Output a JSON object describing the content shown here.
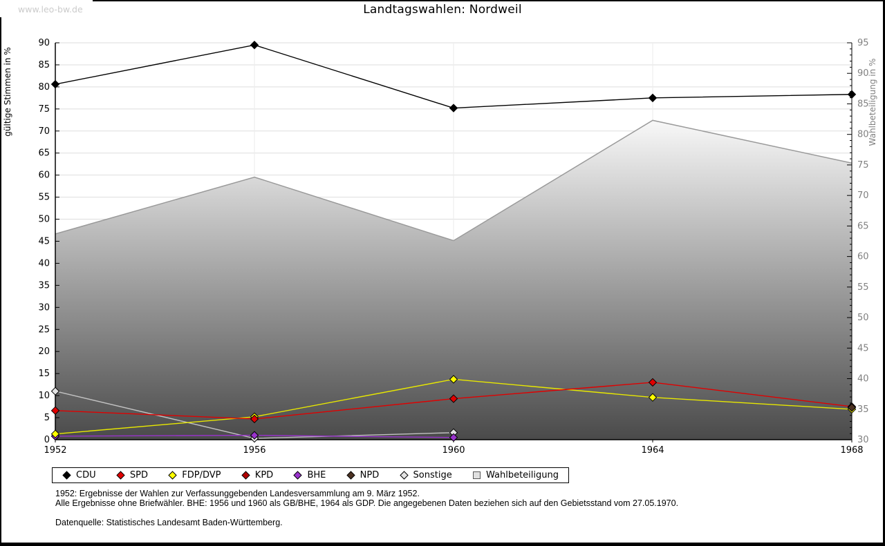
{
  "watermark": "www.leo-bw.de",
  "title": "Landtagswahlen: Nordweil",
  "chart_data": {
    "type": "line",
    "title": "Landtagswahlen: Nordweil",
    "categories": [
      "1952",
      "1956",
      "1960",
      "1964",
      "1968"
    ],
    "y_left": {
      "label": "gültige Stimmen in %",
      "min": 0,
      "max": 90,
      "tick_step": 5
    },
    "y_right": {
      "label": "Wahlbeteiligung in %",
      "min": 30,
      "max": 95,
      "tick_step": 5,
      "minor_tick_step": 1
    },
    "grid": true,
    "legend_position": "bottom",
    "legend": [
      "CDU",
      "SPD",
      "FDP/DVP",
      "KPD",
      "BHE",
      "NPD",
      "Sonstige",
      "Wahlbeteiligung"
    ],
    "series": [
      {
        "name": "Wahlbeteiligung",
        "kind": "area",
        "axis": "right",
        "color": "#9a9a9a",
        "marker_fill": "#e0e0e0",
        "values": [
          63.7,
          73.0,
          62.6,
          82.3,
          75.3
        ]
      },
      {
        "name": "Sonstige",
        "kind": "line",
        "axis": "left",
        "color": "#c2c2c2",
        "marker_fill": "#e3e3e3",
        "values": [
          11.0,
          0.3,
          1.6,
          null,
          null
        ]
      },
      {
        "name": "KPD",
        "kind": "line",
        "axis": "left",
        "color": "#b00000",
        "marker_fill": "#b00000",
        "values": [
          0.8,
          null,
          null,
          null,
          null
        ]
      },
      {
        "name": "BHE",
        "kind": "line",
        "axis": "left",
        "color": "#9933cc",
        "marker_fill": "#9933cc",
        "values": [
          0.8,
          1.0,
          0.5,
          null,
          null
        ]
      },
      {
        "name": "FDP/DVP",
        "kind": "line",
        "axis": "left",
        "color": "#e8e800",
        "marker_fill": "#ffff00",
        "values": [
          1.3,
          5.2,
          13.7,
          9.6,
          6.9
        ]
      },
      {
        "name": "SPD",
        "kind": "line",
        "axis": "left",
        "color": "#e00000",
        "marker_fill": "#e00000",
        "values": [
          6.6,
          4.7,
          9.3,
          13.0,
          7.5
        ]
      },
      {
        "name": "CDU",
        "kind": "line",
        "axis": "left",
        "color": "#000000",
        "marker_fill": "#000000",
        "values": [
          80.6,
          89.5,
          75.2,
          77.5,
          78.3
        ]
      },
      {
        "name": "NPD",
        "kind": "line",
        "axis": "left",
        "color": "#4c3222",
        "marker_fill": "#4c3222",
        "values": [
          null,
          null,
          null,
          null,
          7.3
        ]
      }
    ],
    "colors": {
      "grid": "#dedede",
      "grid_vertical": "#ebebeb",
      "axis": "#000000",
      "right_axis_text": "#808080",
      "area_gradient_top": "#f8f8f8",
      "area_gradient_bottom": "#4a4a4a"
    }
  },
  "footnotes": [
    "1952: Ergebnisse der Wahlen zur Verfassunggebenden Landesversammlung am 9. März 1952.",
    "Alle Ergebnisse ohne Briefwähler. BHE: 1956 und 1960 als GB/BHE, 1964 als GDP. Die angegebenen Daten beziehen sich auf den Gebietsstand vom 27.05.1970.",
    "Datenquelle: Statistisches Landesamt Baden-Württemberg."
  ]
}
